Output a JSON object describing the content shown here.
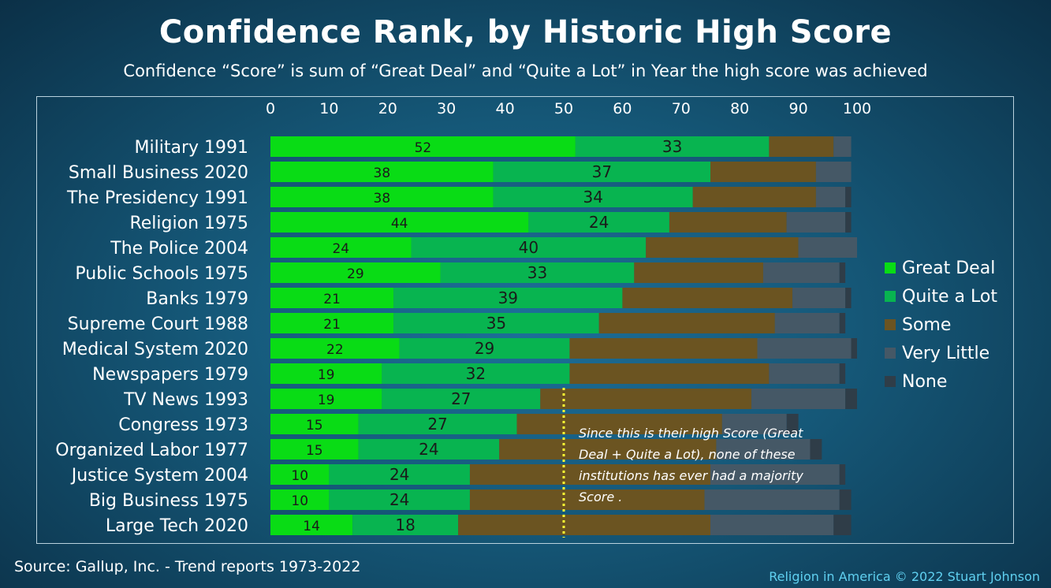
{
  "title": "Confidence Rank, by Historic High Score",
  "subtitle": "Confidence “Score” is sum of “Great Deal” and “Quite a Lot” in Year the high score was achieved",
  "annotation": "Since this is their high Score (Great Deal + Quite a Lot), none of these institutions has ever had a majority Score .",
  "source": "Source: Gallup, Inc. - Trend reports 1973-2022",
  "credit": "Religion in America © 2022 Stuart Johnson",
  "colors": {
    "great_deal": "#09dc15",
    "quite_a_lot": "#08b450",
    "some": "#6b5421",
    "very_little": "#455866",
    "none": "#2f3d48",
    "marker_line": "#ffff33"
  },
  "chart_data": {
    "type": "bar",
    "orientation": "horizontal",
    "stacked": true,
    "xlim": [
      0,
      100
    ],
    "x_ticks": [
      0,
      10,
      20,
      30,
      40,
      50,
      60,
      70,
      80,
      90,
      100
    ],
    "x_axis_position": "top",
    "grid": false,
    "legend_position": "right",
    "reference_line": {
      "x": 50,
      "style": "dotted"
    },
    "categories": [
      "Military 1991",
      "Small Business 2020",
      "The Presidency 1991",
      "Religion 1975",
      "The Police 2004",
      "Public Schools 1975",
      "Banks 1979",
      "Supreme Court 1988",
      "Medical System 2020",
      "Newspapers 1979",
      "TV News 1993",
      "Congress 1973",
      "Organized Labor 1977",
      "Justice System 2004",
      "Big Business 1975",
      "Large Tech 2020"
    ],
    "series": [
      {
        "name": "Great Deal",
        "color": "#09dc15",
        "labeled": true,
        "values": [
          52,
          38,
          38,
          44,
          24,
          29,
          21,
          21,
          22,
          19,
          19,
          15,
          15,
          10,
          10,
          14
        ]
      },
      {
        "name": "Quite a Lot",
        "color": "#08b450",
        "labeled": true,
        "values": [
          33,
          37,
          34,
          24,
          40,
          33,
          39,
          35,
          29,
          32,
          27,
          27,
          24,
          24,
          24,
          18
        ]
      },
      {
        "name": "Some",
        "color": "#6b5421",
        "labeled": false,
        "values": [
          11,
          18,
          21,
          20,
          26,
          22,
          29,
          30,
          32,
          34,
          36,
          35,
          37,
          41,
          40,
          43
        ]
      },
      {
        "name": "Very Little",
        "color": "#455866",
        "labeled": false,
        "values": [
          3,
          6,
          5,
          10,
          10,
          13,
          9,
          11,
          16,
          12,
          16,
          11,
          16,
          22,
          23,
          21
        ]
      },
      {
        "name": "None",
        "color": "#2f3d48",
        "labeled": false,
        "values": [
          0,
          0,
          1,
          1,
          0,
          1,
          1,
          1,
          1,
          1,
          2,
          2,
          2,
          1,
          2,
          3
        ]
      }
    ]
  }
}
